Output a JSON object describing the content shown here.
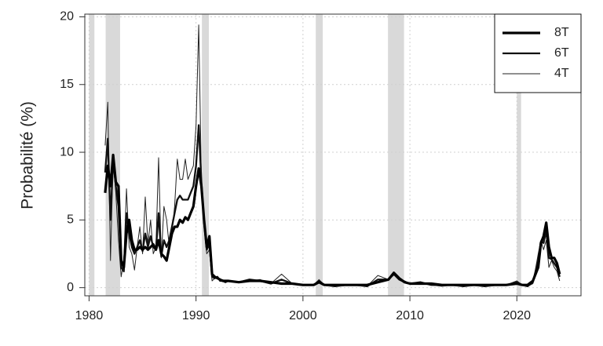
{
  "chart_data": {
    "type": "line",
    "y_label": "Probabilité  (%)",
    "x": [
      1981.5,
      1981.75,
      1982,
      1982.25,
      1982.5,
      1982.75,
      1983,
      1983.25,
      1983.5,
      1983.75,
      1984,
      1984.25,
      1984.5,
      1984.75,
      1985,
      1985.25,
      1985.5,
      1985.75,
      1986,
      1986.25,
      1986.5,
      1986.75,
      1987,
      1987.25,
      1987.5,
      1987.75,
      1988,
      1988.25,
      1988.5,
      1988.75,
      1989,
      1989.25,
      1989.5,
      1989.75,
      1990,
      1990.25,
      1990.5,
      1990.75,
      1991,
      1991.25,
      1991.5,
      1991.75,
      1992,
      1992.25,
      1992.5,
      1992.75,
      1993,
      1994,
      1995,
      1996,
      1997,
      1998,
      1999,
      2000,
      2001,
      2001.5,
      2002,
      2003,
      2004,
      2005,
      2006,
      2007,
      2008,
      2008.5,
      2009,
      2009.5,
      2010,
      2011,
      2012,
      2013,
      2014,
      2015,
      2016,
      2017,
      2018,
      2019,
      2020,
      2020.5,
      2021,
      2021.5,
      2022,
      2022.25,
      2022.5,
      2022.75,
      2023,
      2023.25,
      2023.5,
      2023.75,
      2024
    ],
    "series": [
      {
        "name": "8T",
        "color": "#000000",
        "width": 3.2,
        "values": [
          7,
          9,
          7.5,
          9.8,
          7.8,
          7.5,
          2,
          1.5,
          4,
          5,
          3.5,
          2.8,
          2.8,
          3,
          2.8,
          3,
          2.8,
          3,
          3.2,
          2.8,
          3.5,
          2.5,
          2.3,
          2,
          3,
          4,
          4.5,
          4.5,
          5,
          4.8,
          5.2,
          5,
          5.5,
          6,
          7.5,
          8.8,
          7.5,
          5,
          3,
          3.8,
          1,
          0.8,
          0.7,
          0.6,
          0.5,
          0.5,
          0.5,
          0.4,
          0.5,
          0.5,
          0.4,
          0.3,
          0.3,
          0.2,
          0.2,
          0.4,
          0.2,
          0.2,
          0.2,
          0.2,
          0.2,
          0.4,
          0.6,
          1.1,
          0.7,
          0.4,
          0.3,
          0.3,
          0.3,
          0.2,
          0.2,
          0.2,
          0.2,
          0.2,
          0.2,
          0.2,
          0.3,
          0.2,
          0.2,
          0.5,
          1.5,
          3.3,
          3.8,
          4.8,
          3,
          2.2,
          2.2,
          1.8,
          1
        ]
      },
      {
        "name": "6T",
        "color": "#111111",
        "width": 2.3,
        "values": [
          8.5,
          11,
          5,
          9.5,
          7.5,
          6,
          1.5,
          1.2,
          5.5,
          4,
          3,
          2.5,
          3,
          3.5,
          2.7,
          4,
          3,
          3.8,
          3,
          2.8,
          5.5,
          2.3,
          3.5,
          3,
          3.5,
          4.5,
          5.5,
          6.5,
          6.8,
          6.5,
          6.5,
          6.5,
          7,
          7.5,
          9,
          12,
          7.8,
          4.8,
          2.8,
          3.2,
          0.8,
          0.7,
          0.8,
          0.5,
          0.5,
          0.4,
          0.5,
          0.4,
          0.6,
          0.5,
          0.3,
          0.6,
          0.3,
          0.2,
          0.2,
          0.5,
          0.2,
          0.1,
          0.2,
          0.2,
          0.1,
          0.6,
          0.6,
          1.0,
          0.6,
          0.4,
          0.3,
          0.4,
          0.2,
          0.2,
          0.2,
          0.1,
          0.2,
          0.1,
          0.2,
          0.2,
          0.4,
          0.2,
          0.1,
          0.4,
          2,
          3.4,
          3.3,
          4.2,
          2.2,
          2.1,
          1.8,
          1.5,
          0.8
        ]
      },
      {
        "name": "4T",
        "color": "#222222",
        "width": 1,
        "values": [
          10.5,
          13.7,
          2,
          9.5,
          7,
          3.5,
          0.8,
          2,
          7.3,
          3,
          2.5,
          1.3,
          3,
          4.5,
          2.5,
          6.7,
          3.2,
          5,
          2.5,
          3,
          9.6,
          2.2,
          6,
          5,
          3,
          4,
          6,
          9.5,
          8,
          8,
          9.5,
          8,
          8.5,
          9,
          12,
          19.4,
          8,
          4.5,
          2.5,
          2.8,
          0.5,
          0.7,
          0.8,
          0.5,
          0.6,
          0.4,
          0.5,
          0.4,
          0.5,
          0.6,
          0.3,
          1.0,
          0.3,
          0.2,
          0.2,
          0.6,
          0.2,
          0.1,
          0.2,
          0.2,
          0.1,
          0.9,
          0.6,
          1.0,
          0.6,
          0.5,
          0.3,
          0.4,
          0.2,
          0.1,
          0.2,
          0.1,
          0.2,
          0.1,
          0.2,
          0.2,
          0.5,
          0.2,
          0.1,
          0.3,
          2.5,
          3.5,
          2.8,
          3.5,
          1.5,
          2,
          1.5,
          1.2,
          0.5
        ]
      }
    ],
    "shaded_periods": [
      [
        1980.0,
        1980.5
      ],
      [
        1981.55,
        1982.9
      ],
      [
        1990.55,
        1991.2
      ],
      [
        2001.2,
        2001.85
      ],
      [
        2007.95,
        2009.45
      ],
      [
        2020.0,
        2020.4
      ]
    ],
    "shade_color": "#d9d9d9",
    "xlim": [
      1979.6,
      2026
    ],
    "xticks": [
      1980,
      1990,
      2000,
      2010,
      2020
    ],
    "ylim": [
      -0.6,
      20.2
    ],
    "yticks": [
      0,
      5,
      10,
      15,
      20
    ],
    "grid": true,
    "legend_position": "top-right"
  }
}
